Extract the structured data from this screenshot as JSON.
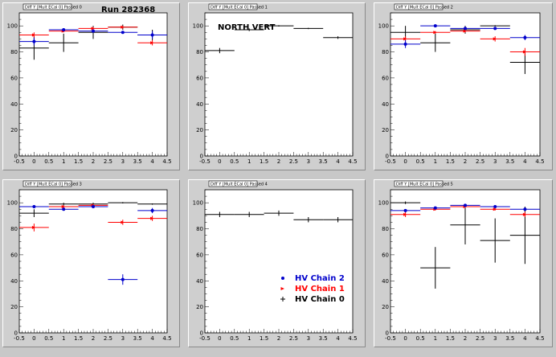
{
  "canvas": {
    "run_label": "Run 282368"
  },
  "pads": [
    {
      "title": "Diff Y [Mult ECal 0] Passed 0"
    },
    {
      "title": "Diff Y [Mult ECal 0] Passed 1"
    },
    {
      "title": "Diff Y [Mult ECal 0] Passed 2"
    },
    {
      "title": "Diff Y [Mult ECal 0] Passed 3"
    },
    {
      "title": "Diff Y [Mult ECal 0] Passed 4"
    },
    {
      "title": "Diff Y [Mult ECal 0] Passed 5"
    }
  ],
  "labels": {
    "north_vert": "NORTH VERT"
  },
  "legend": {
    "entries": [
      {
        "name": "HV Chain 2",
        "color": "#0000cc",
        "marker": "dot"
      },
      {
        "name": "HV Chain 1",
        "color": "#ff0000",
        "marker": "arrow"
      },
      {
        "name": "HV Chain 0",
        "color": "#000000",
        "marker": "cross"
      }
    ]
  },
  "chart_data": [
    {
      "type": "scatter",
      "xlim": [
        -0.5,
        4.5
      ],
      "ylim": [
        0,
        110
      ],
      "xticks": [
        "-0.5",
        "0",
        "0.5",
        "1",
        "1.5",
        "2",
        "2.5",
        "3",
        "3.5",
        "4",
        "4.5"
      ],
      "yticks": [
        "0",
        "20",
        "40",
        "60",
        "80",
        "100"
      ],
      "series": [
        {
          "color": "#000000",
          "x": [
            0,
            1,
            2,
            3,
            4
          ],
          "y": [
            83,
            87,
            95,
            99,
            93
          ],
          "yerr": [
            9,
            7,
            5,
            2,
            4
          ]
        },
        {
          "color": "#ff0000",
          "x": [
            0,
            1,
            2,
            3,
            4
          ],
          "y": [
            93,
            96,
            98,
            99,
            87
          ],
          "yerr": [
            2,
            1,
            1,
            1,
            2
          ]
        },
        {
          "color": "#0000cc",
          "x": [
            0,
            1,
            2,
            3,
            4
          ],
          "y": [
            88,
            97,
            96,
            95,
            93
          ],
          "yerr": [
            3,
            1,
            1,
            1,
            3
          ]
        }
      ]
    },
    {
      "type": "scatter",
      "xlim": [
        -0.5,
        4.5
      ],
      "ylim": [
        0,
        110
      ],
      "xticks": [
        "-0.5",
        "0",
        "0.5",
        "1",
        "1.5",
        "2",
        "2.5",
        "3",
        "3.5",
        "4",
        "4.5"
      ],
      "yticks": [
        "0",
        "20",
        "40",
        "60",
        "80",
        "100"
      ],
      "series": [
        {
          "color": "#000000",
          "x": [
            0,
            1,
            2,
            3,
            4
          ],
          "y": [
            81,
            97,
            100,
            98,
            91
          ],
          "yerr": [
            2,
            1,
            0.5,
            0.5,
            1
          ]
        }
      ]
    },
    {
      "type": "scatter",
      "xlim": [
        -0.5,
        4.5
      ],
      "ylim": [
        0,
        110
      ],
      "xticks": [
        "-0.5",
        "0",
        "0.5",
        "1",
        "1.5",
        "2",
        "2.5",
        "3",
        "3.5",
        "4",
        "4.5"
      ],
      "yticks": [
        "0",
        "20",
        "40",
        "60",
        "80",
        "100"
      ],
      "series": [
        {
          "color": "#000000",
          "x": [
            0,
            1,
            2,
            3,
            4
          ],
          "y": [
            95,
            87,
            97,
            100,
            72
          ],
          "yerr": [
            5,
            7,
            3,
            0.5,
            9
          ]
        },
        {
          "color": "#ff0000",
          "x": [
            0,
            1,
            2,
            3,
            4
          ],
          "y": [
            90,
            95,
            96,
            90,
            80
          ],
          "yerr": [
            2,
            1,
            1,
            2,
            3
          ]
        },
        {
          "color": "#0000cc",
          "x": [
            0,
            1,
            2,
            3,
            4
          ],
          "y": [
            86,
            100,
            98,
            98,
            91
          ],
          "yerr": [
            3,
            0.5,
            1,
            1,
            2
          ]
        }
      ]
    },
    {
      "type": "scatter",
      "xlim": [
        -0.5,
        4.5
      ],
      "ylim": [
        0,
        110
      ],
      "xticks": [
        "-0.5",
        "0",
        "0.5",
        "1",
        "1.5",
        "2",
        "2.5",
        "3",
        "3.5",
        "4",
        "4.5"
      ],
      "yticks": [
        "0",
        "20",
        "40",
        "60",
        "80",
        "100"
      ],
      "series": [
        {
          "color": "#000000",
          "x": [
            0,
            1,
            2,
            3,
            4
          ],
          "y": [
            92,
            99,
            99,
            100,
            99
          ],
          "yerr": [
            3,
            1,
            1,
            0.5,
            0.5
          ]
        },
        {
          "color": "#ff0000",
          "x": [
            0,
            1,
            2,
            3,
            4
          ],
          "y": [
            81,
            97,
            98,
            85,
            88
          ],
          "yerr": [
            3,
            1,
            1,
            2,
            2
          ]
        },
        {
          "color": "#0000cc",
          "x": [
            0,
            1,
            2,
            3,
            4
          ],
          "y": [
            97,
            95,
            97,
            41,
            94
          ],
          "yerr": [
            1,
            1,
            1,
            4,
            2
          ]
        }
      ]
    },
    {
      "type": "scatter",
      "xlim": [
        -0.5,
        4.5
      ],
      "ylim": [
        0,
        110
      ],
      "xticks": [
        "-0.5",
        "0",
        "0.5",
        "1",
        "1.5",
        "2",
        "2.5",
        "3",
        "3.5",
        "4",
        "4.5"
      ],
      "yticks": [
        "0",
        "20",
        "40",
        "60",
        "80",
        "100"
      ],
      "series": [
        {
          "color": "#000000",
          "x": [
            0,
            1,
            2,
            3,
            4
          ],
          "y": [
            91,
            91,
            92,
            87,
            87
          ],
          "yerr": [
            2,
            2,
            2,
            2,
            2
          ]
        }
      ]
    },
    {
      "type": "scatter",
      "xlim": [
        -0.5,
        4.5
      ],
      "ylim": [
        0,
        110
      ],
      "xticks": [
        "-0.5",
        "0",
        "0.5",
        "1",
        "1.5",
        "2",
        "2.5",
        "3",
        "3.5",
        "4",
        "4.5"
      ],
      "yticks": [
        "0",
        "20",
        "40",
        "60",
        "80",
        "100"
      ],
      "series": [
        {
          "color": "#000000",
          "x": [
            0,
            1,
            2,
            3,
            4
          ],
          "y": [
            100,
            50,
            83,
            71,
            75
          ],
          "yerr": [
            1,
            16,
            15,
            17,
            22
          ]
        },
        {
          "color": "#ff0000",
          "x": [
            0,
            1,
            2,
            3,
            4
          ],
          "y": [
            91,
            95,
            97,
            95,
            91
          ],
          "yerr": [
            2,
            1,
            1,
            1,
            2
          ]
        },
        {
          "color": "#0000cc",
          "x": [
            0,
            1,
            2,
            3,
            4
          ],
          "y": [
            94,
            96,
            98,
            97,
            95
          ],
          "yerr": [
            1,
            1,
            1,
            1,
            1
          ]
        }
      ]
    }
  ]
}
